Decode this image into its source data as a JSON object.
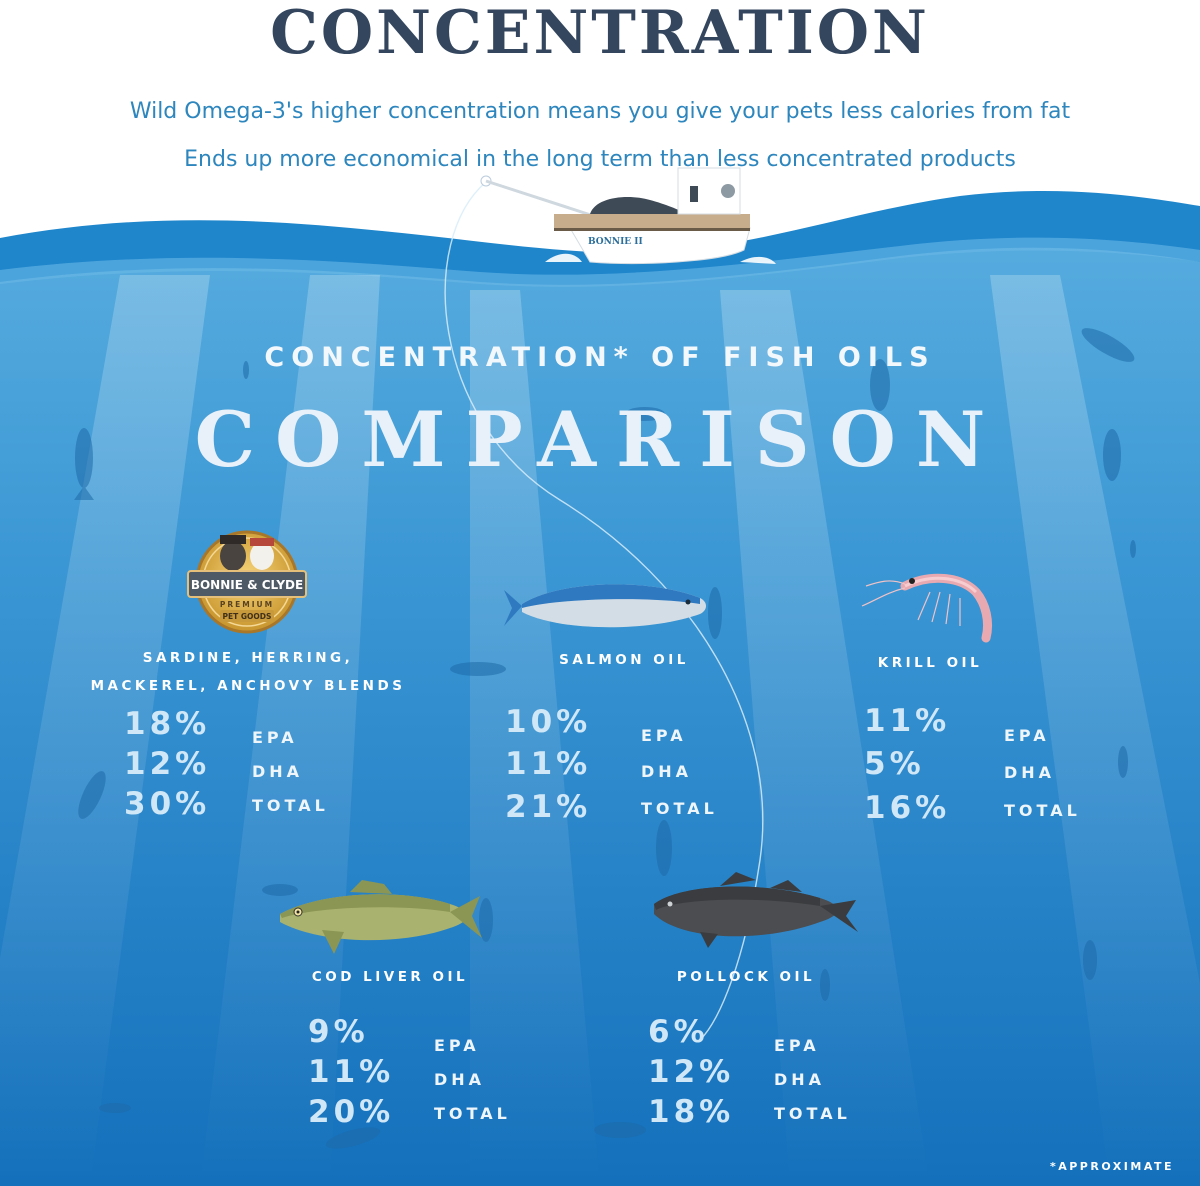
{
  "header": {
    "title": "CONCENTRATION",
    "line1": "Wild Omega-3's higher concentration means you give your pets less calories from fat",
    "line2": "Ends up more economical in the long term than less concentrated products"
  },
  "boat": {
    "name": "BONNIE II"
  },
  "heading": {
    "small": "CONCENTRATION* OF FISH OILS",
    "big": "COMPARISON"
  },
  "brand": {
    "name": "BONNIE & CLYDE",
    "tagline": "PREMIUM",
    "sub": "PET GOODS"
  },
  "products": [
    {
      "label_line1": "SARDINE, HERRING,",
      "label_line2": "MACKEREL, ANCHOVY BLENDS",
      "epa": "18%",
      "dha": "12%",
      "total": "30%"
    },
    {
      "label_line1": "SALMON OIL",
      "epa": "10%",
      "dha": "11%",
      "total": "21%"
    },
    {
      "label_line1": "KRILL OIL",
      "epa": "11%",
      "dha": "5%",
      "total": "16%"
    },
    {
      "label_line1": "COD LIVER OIL",
      "epa": "9%",
      "dha": "11%",
      "total": "20%"
    },
    {
      "label_line1": "POLLOCK OIL",
      "epa": "6%",
      "dha": "12%",
      "total": "18%"
    }
  ],
  "metrics": {
    "epa": "EPA",
    "dha": "DHA",
    "total": "TOTAL"
  },
  "footnote": "*APPROXIMATE",
  "colors": {
    "title": "#33465e",
    "subtitle": "#2d86bd",
    "ocean_top": "#4fa6dd",
    "ocean_bottom": "#1273bd",
    "wave": "#1f86cc"
  }
}
